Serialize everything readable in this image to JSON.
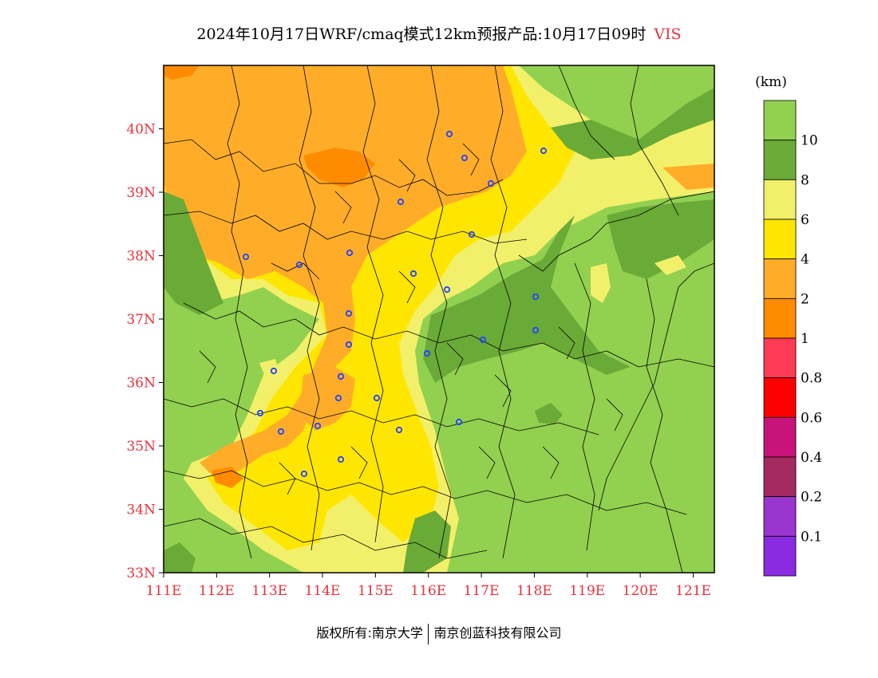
{
  "title": {
    "main": "2024年10月17日WRF/cmaq模式12km预报产品:10月17日09时",
    "variable": "VIS"
  },
  "map": {
    "lat_labels": [
      "40N",
      "39N",
      "38N",
      "37N",
      "36N",
      "35N",
      "34N",
      "33N"
    ],
    "lon_labels": [
      "111E",
      "112E",
      "113E",
      "114E",
      "115E",
      "116E",
      "117E",
      "118E",
      "119E",
      "120E",
      "121E"
    ],
    "extent": {
      "lon_min": 111,
      "lon_max": 121.4,
      "lat_min": 33,
      "lat_max": 41
    }
  },
  "legend": {
    "unit": "(km)",
    "labels": [
      "10",
      "8",
      "6",
      "4",
      "2",
      "1",
      "0.8",
      "0.6",
      "0.4",
      "0.2",
      "0.1"
    ],
    "colors": [
      "#92d050",
      "#6aaa37",
      "#f2f06a",
      "#ffe600",
      "#ffad28",
      "#ff8c00",
      "#ff3a55",
      "#ff0000",
      "#c8147a",
      "#a52a5f",
      "#9a36cf",
      "#8a2be2"
    ]
  },
  "footer": {
    "left": "版权所有:南京大学",
    "right": "南京创蓝科技有限公司"
  }
}
